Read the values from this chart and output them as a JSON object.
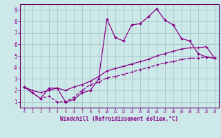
{
  "xlabel": "Windchill (Refroidissement éolien,°C)",
  "bg_color": "#cce8e8",
  "grid_color": "#aacccc",
  "line_color": "#880088",
  "spine_color": "#660066",
  "xlim": [
    -0.5,
    23.5
  ],
  "ylim": [
    0.5,
    9.5
  ],
  "xticks": [
    0,
    1,
    2,
    3,
    4,
    5,
    6,
    7,
    8,
    9,
    10,
    11,
    12,
    13,
    14,
    15,
    16,
    17,
    18,
    19,
    20,
    21,
    22,
    23
  ],
  "yticks": [
    1,
    2,
    3,
    4,
    5,
    6,
    7,
    8,
    9
  ],
  "series1_x": [
    0,
    1,
    2,
    3,
    4,
    5,
    6,
    7,
    8,
    9,
    10,
    11,
    12,
    13,
    14,
    15,
    16,
    17,
    18,
    19,
    20,
    21,
    22,
    23
  ],
  "series1_y": [
    2.3,
    1.8,
    1.3,
    2.2,
    2.2,
    1.0,
    1.2,
    1.8,
    2.0,
    3.0,
    8.2,
    6.6,
    6.3,
    7.7,
    7.8,
    8.4,
    9.1,
    8.1,
    7.7,
    6.5,
    6.3,
    5.2,
    4.9,
    4.8
  ],
  "series2_x": [
    0,
    1,
    2,
    3,
    4,
    5,
    6,
    7,
    8,
    9,
    10,
    11,
    12,
    13,
    14,
    15,
    16,
    17,
    18,
    19,
    20,
    21,
    22,
    23
  ],
  "series2_y": [
    2.3,
    1.8,
    1.3,
    1.5,
    1.0,
    1.0,
    1.4,
    2.0,
    2.5,
    2.7,
    3.1,
    3.2,
    3.4,
    3.6,
    3.8,
    4.0,
    4.2,
    4.4,
    4.5,
    4.7,
    4.8,
    4.8,
    4.9,
    4.8
  ],
  "series3_x": [
    0,
    1,
    2,
    3,
    4,
    5,
    6,
    7,
    8,
    9,
    10,
    11,
    12,
    13,
    14,
    15,
    16,
    17,
    18,
    19,
    20,
    21,
    22,
    23
  ],
  "series3_y": [
    2.3,
    2.0,
    1.8,
    2.0,
    2.2,
    2.0,
    2.3,
    2.5,
    2.8,
    3.2,
    3.7,
    3.9,
    4.1,
    4.3,
    4.5,
    4.7,
    5.0,
    5.2,
    5.4,
    5.6,
    5.7,
    5.7,
    5.8,
    4.8
  ]
}
